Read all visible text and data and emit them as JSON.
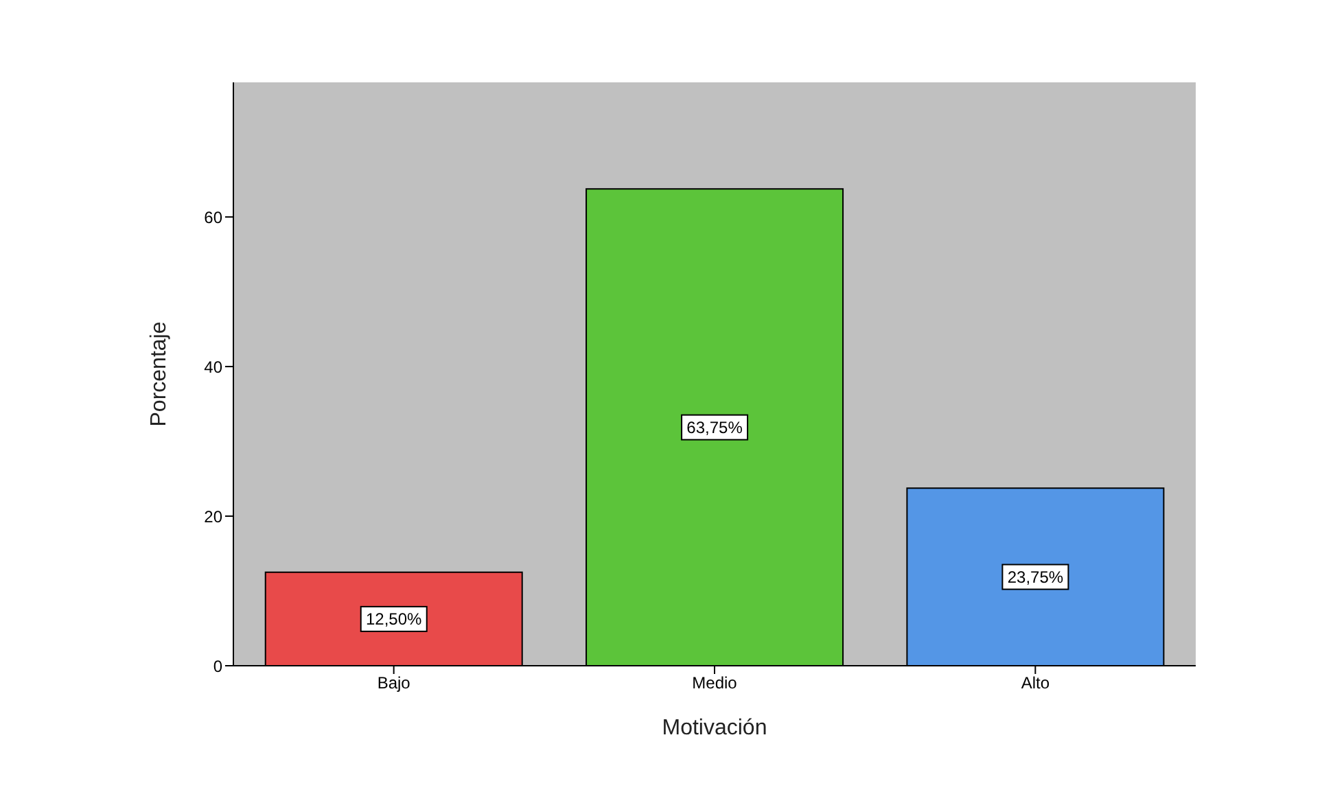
{
  "chart_data": {
    "type": "bar",
    "xlabel": "Motivación",
    "ylabel": "Porcentaje",
    "categories": [
      "Bajo",
      "Medio",
      "Alto"
    ],
    "values": [
      12.5,
      63.75,
      23.75
    ],
    "colors": [
      "#e84a4a",
      "#5cc43a",
      "#5496e6"
    ],
    "value_labels": [
      "12,50%",
      "63,75%",
      "23,75%"
    ],
    "ylim": [
      0,
      78
    ],
    "yticks": [
      0,
      20,
      40,
      60
    ],
    "grid": false
  }
}
